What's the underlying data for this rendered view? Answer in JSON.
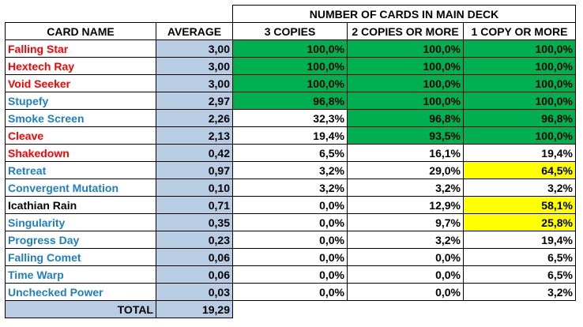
{
  "header": {
    "group_title": "NUMBER OF CARDS IN MAIN DECK",
    "columns": [
      "CARD NAME",
      "AVERAGE",
      "3 COPIES",
      "2 COPIES OR MORE",
      "1 COPY OR MORE"
    ]
  },
  "colors": {
    "red": "#ff0000",
    "blue": "#1f7ec2",
    "black": "#000000",
    "green": "#00b050",
    "yellow": "#ffff00",
    "average_bg": "#b8cce4"
  },
  "rows": [
    {
      "name": "Falling Star",
      "color": "red",
      "average": "3,00",
      "c3": "100,0%",
      "c2": "100,0%",
      "c1": "100,0%",
      "h3": "green",
      "h2": "green",
      "h1": "green"
    },
    {
      "name": "Hextech Ray",
      "color": "red",
      "average": "3,00",
      "c3": "100,0%",
      "c2": "100,0%",
      "c1": "100,0%",
      "h3": "green",
      "h2": "green",
      "h1": "green"
    },
    {
      "name": "Void Seeker",
      "color": "red",
      "average": "3,00",
      "c3": "100,0%",
      "c2": "100,0%",
      "c1": "100,0%",
      "h3": "green",
      "h2": "green",
      "h1": "green"
    },
    {
      "name": "Stupefy",
      "color": "blue",
      "average": "2,97",
      "c3": "96,8%",
      "c2": "100,0%",
      "c1": "100,0%",
      "h3": "green",
      "h2": "green",
      "h1": "green"
    },
    {
      "name": "Smoke Screen",
      "color": "blue",
      "average": "2,26",
      "c3": "32,3%",
      "c2": "96,8%",
      "c1": "96,8%",
      "h3": "white",
      "h2": "green",
      "h1": "green"
    },
    {
      "name": "Cleave",
      "color": "red",
      "average": "2,13",
      "c3": "19,4%",
      "c2": "93,5%",
      "c1": "100,0%",
      "h3": "white",
      "h2": "green",
      "h1": "green"
    },
    {
      "name": "Shakedown",
      "color": "red",
      "average": "0,42",
      "c3": "6,5%",
      "c2": "16,1%",
      "c1": "19,4%",
      "h3": "white",
      "h2": "white",
      "h1": "white"
    },
    {
      "name": "Retreat",
      "color": "blue",
      "average": "0,97",
      "c3": "3,2%",
      "c2": "29,0%",
      "c1": "64,5%",
      "h3": "white",
      "h2": "white",
      "h1": "yellow"
    },
    {
      "name": "Convergent Mutation",
      "color": "blue",
      "average": "0,10",
      "c3": "3,2%",
      "c2": "3,2%",
      "c1": "3,2%",
      "h3": "white",
      "h2": "white",
      "h1": "white"
    },
    {
      "name": "Icathian Rain",
      "color": "black",
      "average": "0,71",
      "c3": "0,0%",
      "c2": "12,9%",
      "c1": "58,1%",
      "h3": "white",
      "h2": "white",
      "h1": "yellow"
    },
    {
      "name": "Singularity",
      "color": "blue",
      "average": "0,35",
      "c3": "0,0%",
      "c2": "9,7%",
      "c1": "25,8%",
      "h3": "white",
      "h2": "white",
      "h1": "yellow"
    },
    {
      "name": "Progress Day",
      "color": "blue",
      "average": "0,23",
      "c3": "0,0%",
      "c2": "3,2%",
      "c1": "19,4%",
      "h3": "white",
      "h2": "white",
      "h1": "white"
    },
    {
      "name": "Falling Comet",
      "color": "blue",
      "average": "0,06",
      "c3": "0,0%",
      "c2": "0,0%",
      "c1": "6,5%",
      "h3": "white",
      "h2": "white",
      "h1": "white"
    },
    {
      "name": "Time Warp",
      "color": "blue",
      "average": "0,06",
      "c3": "0,0%",
      "c2": "0,0%",
      "c1": "6,5%",
      "h3": "white",
      "h2": "white",
      "h1": "white"
    },
    {
      "name": "Unchecked Power",
      "color": "blue",
      "average": "0,03",
      "c3": "0,0%",
      "c2": "0,0%",
      "c1": "3,2%",
      "h3": "white",
      "h2": "white",
      "h1": "white"
    }
  ],
  "total": {
    "label": "TOTAL",
    "value": "19,29"
  }
}
